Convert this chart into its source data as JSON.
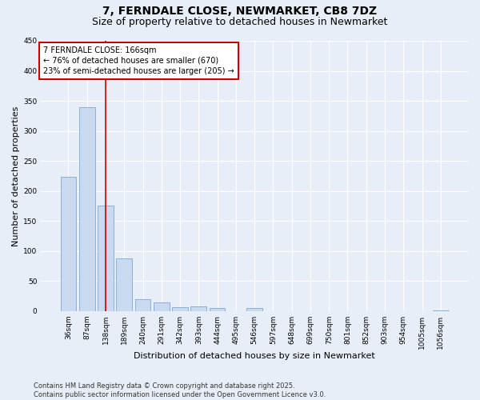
{
  "title_line1": "7, FERNDALE CLOSE, NEWMARKET, CB8 7DZ",
  "title_line2": "Size of property relative to detached houses in Newmarket",
  "xlabel": "Distribution of detached houses by size in Newmarket",
  "ylabel": "Number of detached properties",
  "categories": [
    "36sqm",
    "87sqm",
    "138sqm",
    "189sqm",
    "240sqm",
    "291sqm",
    "342sqm",
    "393sqm",
    "444sqm",
    "495sqm",
    "546sqm",
    "597sqm",
    "648sqm",
    "699sqm",
    "750sqm",
    "801sqm",
    "852sqm",
    "903sqm",
    "954sqm",
    "1005sqm",
    "1056sqm"
  ],
  "values": [
    224,
    340,
    175,
    88,
    20,
    14,
    7,
    8,
    5,
    0,
    5,
    0,
    0,
    0,
    0,
    0,
    0,
    0,
    0,
    0,
    1
  ],
  "bar_color": "#c9d9f0",
  "bar_edge_color": "#7aa8d4",
  "vline_x_index": 2,
  "vline_color": "#cc0000",
  "annotation_text": "7 FERNDALE CLOSE: 166sqm\n← 76% of detached houses are smaller (670)\n23% of semi-detached houses are larger (205) →",
  "annotation_box_color": "white",
  "annotation_box_edge": "#cc0000",
  "ylim": [
    0,
    450
  ],
  "yticks": [
    0,
    50,
    100,
    150,
    200,
    250,
    300,
    350,
    400,
    450
  ],
  "background_color": "#e8eef8",
  "plot_bg_color": "#e8eef8",
  "grid_color": "#ffffff",
  "footer": "Contains HM Land Registry data © Crown copyright and database right 2025.\nContains public sector information licensed under the Open Government Licence v3.0.",
  "title_fontsize": 10,
  "subtitle_fontsize": 9,
  "xlabel_fontsize": 8,
  "ylabel_fontsize": 8,
  "tick_fontsize": 6.5,
  "annotation_fontsize": 7,
  "footer_fontsize": 6
}
